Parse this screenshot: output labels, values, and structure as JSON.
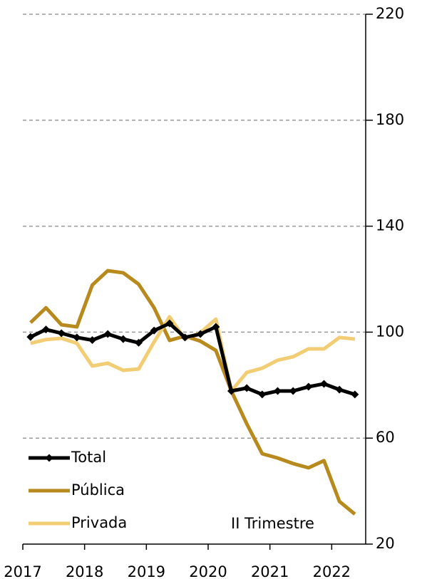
{
  "chart_data": {
    "type": "line",
    "x": [
      2017.125,
      2017.375,
      2017.625,
      2017.875,
      2018.125,
      2018.375,
      2018.625,
      2018.875,
      2019.125,
      2019.375,
      2019.625,
      2019.875,
      2020.125,
      2020.375,
      2020.625,
      2020.875,
      2021.125,
      2021.375,
      2021.625,
      2021.875,
      2022.125,
      2022.375
    ],
    "series": [
      {
        "name": "Total",
        "color": "#000000",
        "markers": true,
        "values": [
          98.2,
          101,
          99.6,
          98,
          97,
          99.3,
          97.4,
          96,
          100.6,
          103.3,
          98,
          99.3,
          102,
          77.8,
          78.9,
          76.5,
          77.8,
          77.8,
          79.4,
          80.5,
          78.3,
          76.5
        ]
      },
      {
        "name": "Pública",
        "color": "#b8891c",
        "markers": false,
        "values": [
          103.6,
          109.2,
          102.8,
          102,
          117.8,
          123.2,
          122.4,
          118.1,
          109.2,
          96.9,
          98.5,
          96.6,
          93.1,
          77.8,
          65.4,
          54.1,
          52.5,
          50.4,
          48.8,
          51.5,
          36.1,
          31.3
        ]
      },
      {
        "name": "Privada",
        "color": "#f3cd74",
        "markers": false,
        "values": [
          95.8,
          97.2,
          97.7,
          95.8,
          87.2,
          88.3,
          85.6,
          86.1,
          96.3,
          105.8,
          97.4,
          99.8,
          104.9,
          77.8,
          84.8,
          86.4,
          89.4,
          90.7,
          93.7,
          93.7,
          98,
          97.4
        ]
      }
    ],
    "annotation": "II Trimestre",
    "xlim": [
      2017,
      2022.55
    ],
    "xticks": [
      2017,
      2018,
      2019,
      2020,
      2021,
      2022
    ],
    "ylim": [
      20,
      220
    ],
    "yticks": [
      20,
      60,
      100,
      140,
      180,
      220
    ],
    "y_axis_side": "right",
    "grid": true
  }
}
